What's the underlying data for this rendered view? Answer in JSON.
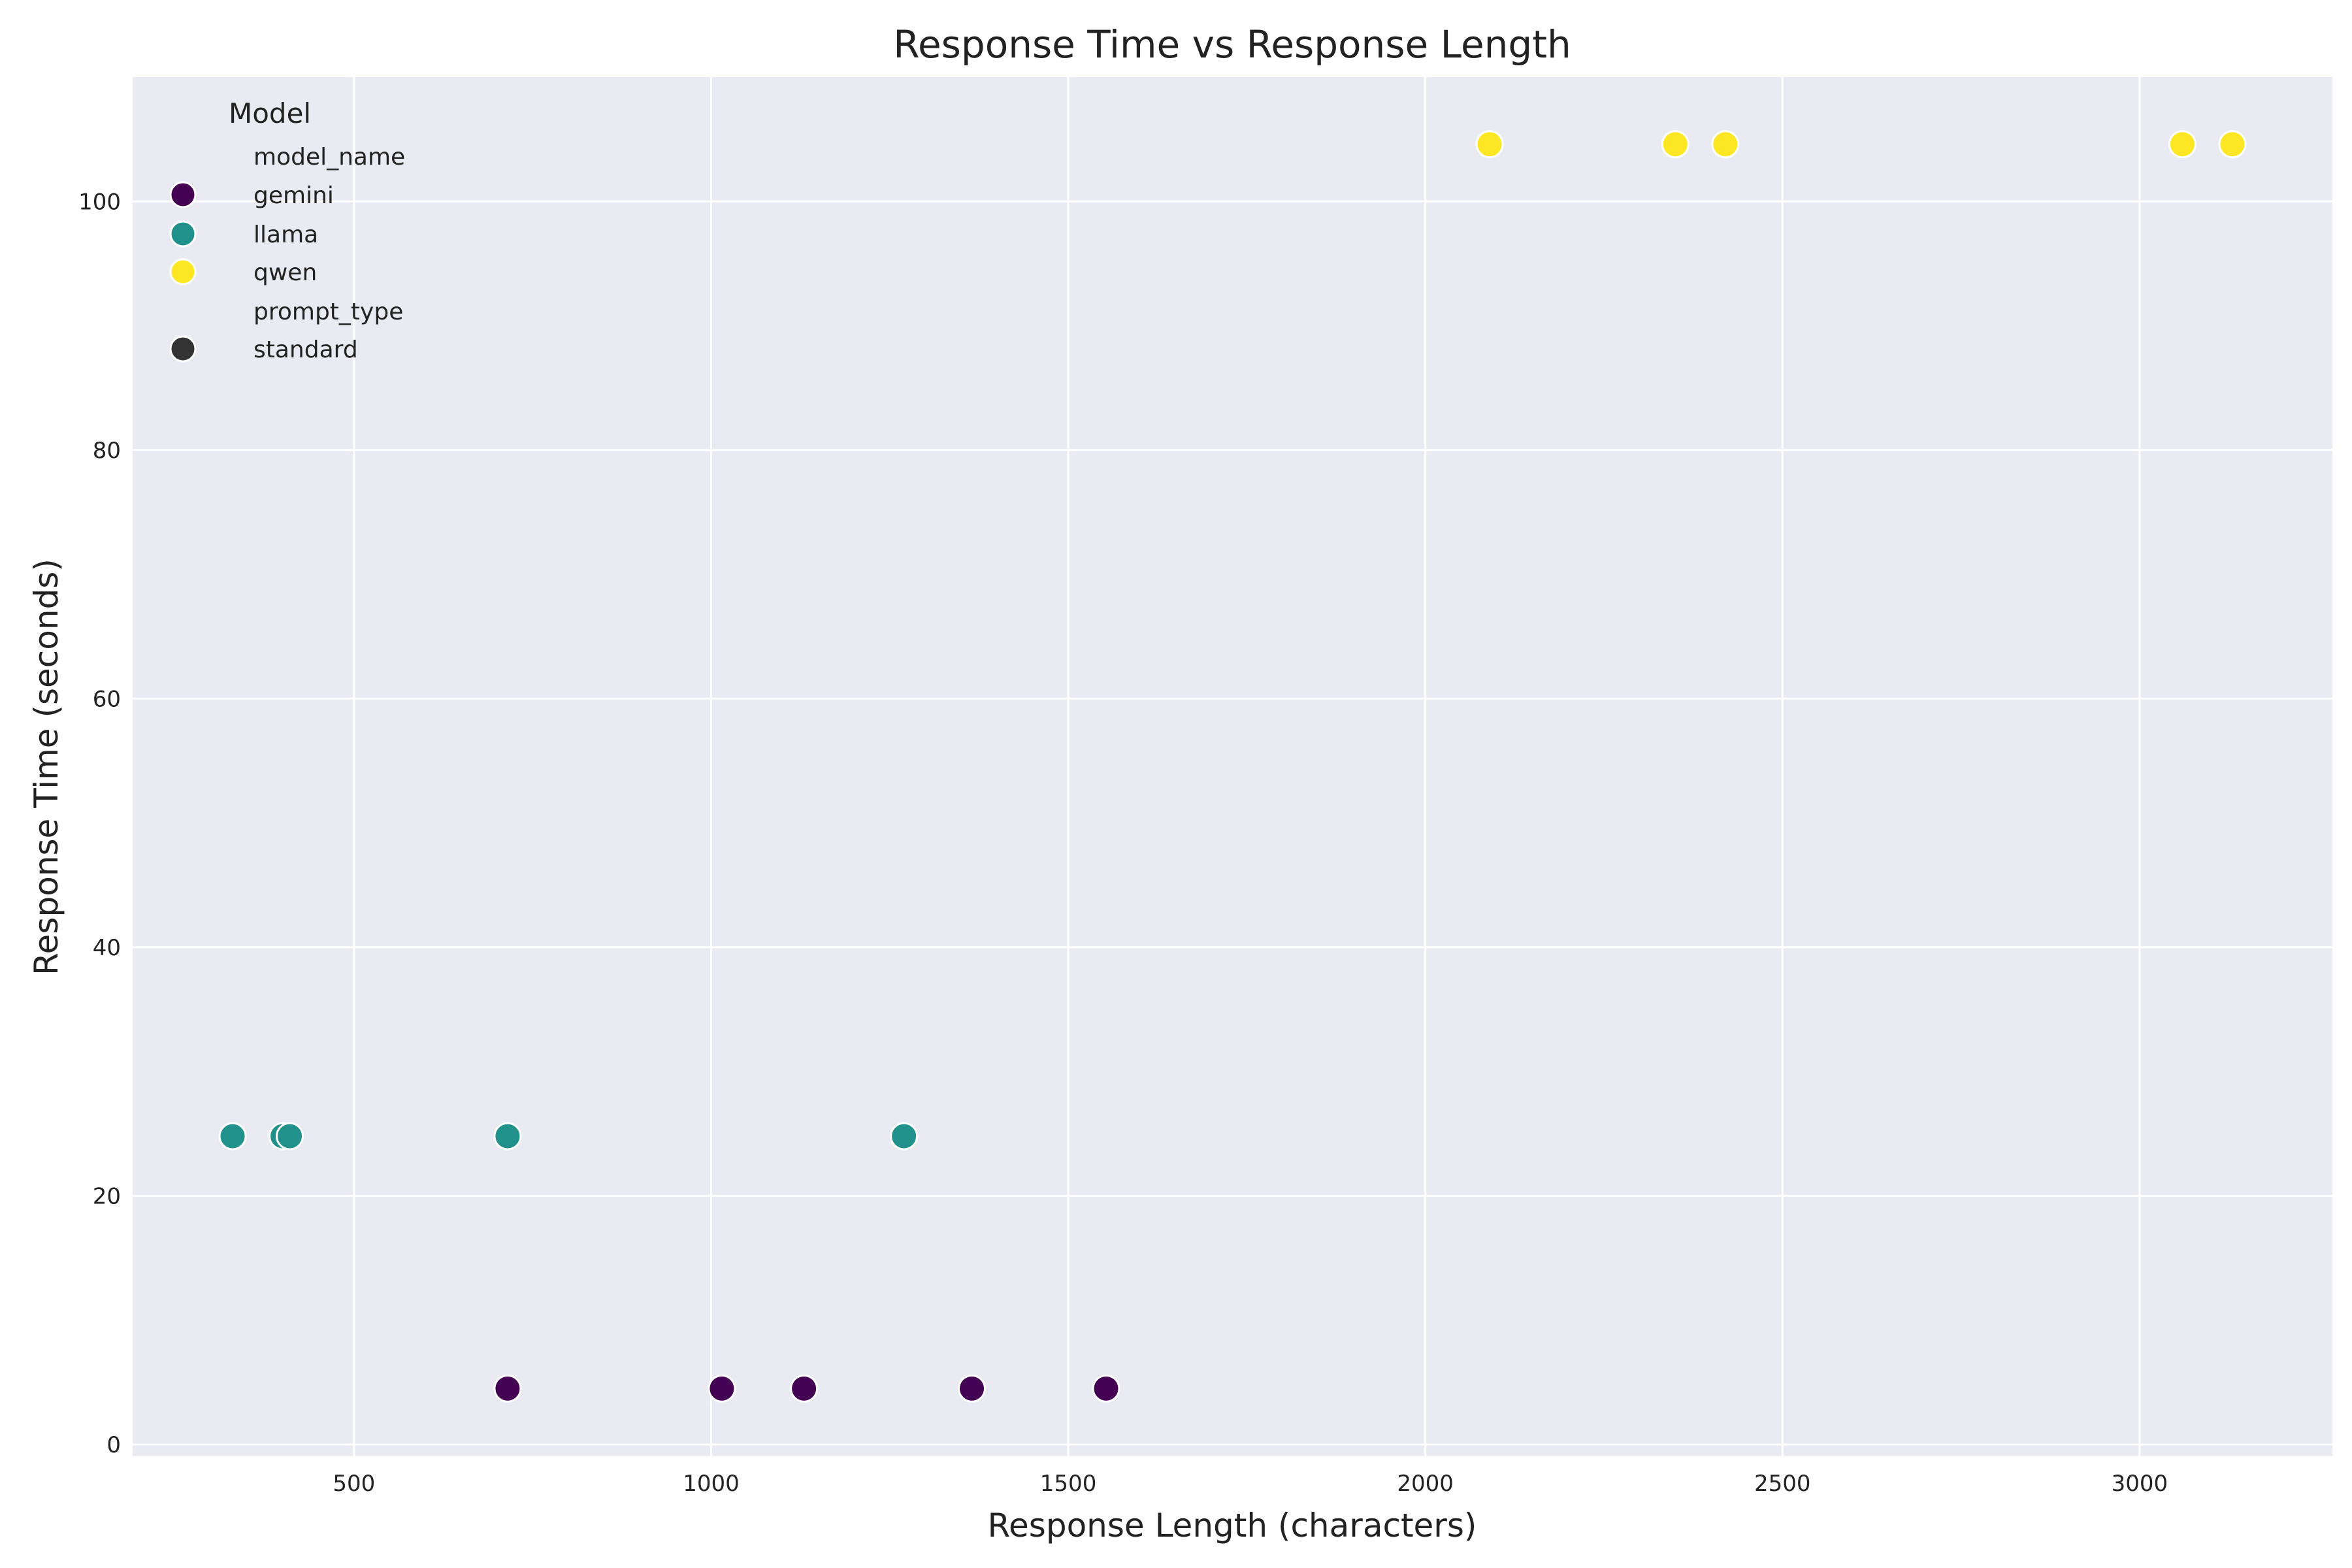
{
  "chart_data": {
    "type": "scatter",
    "title": "Response Time vs Response Length",
    "xlabel": "Response Length (characters)",
    "ylabel": "Response Time (seconds)",
    "xlim": [
      190,
      3270
    ],
    "ylim": [
      -1,
      110
    ],
    "xticks": [
      500,
      1000,
      1500,
      2000,
      2500,
      3000
    ],
    "yticks": [
      0,
      20,
      40,
      60,
      80,
      100
    ],
    "grid": true,
    "background": "#eaeaf2",
    "legend": {
      "placement": "top-left",
      "title": "Model",
      "hue_heading": "model_name",
      "style_heading": "prompt_type",
      "style_entries": [
        {
          "label": "standard",
          "color": "#333333"
        }
      ]
    },
    "series": [
      {
        "name": "gemini",
        "color": "#440154",
        "x": [
          715,
          1015,
          1130,
          1365,
          1553
        ],
        "y": [
          4.5,
          4.5,
          4.5,
          4.5,
          4.5
        ]
      },
      {
        "name": "llama",
        "color": "#21918c",
        "x": [
          330,
          400,
          410,
          715,
          1270
        ],
        "y": [
          24.8,
          24.8,
          24.8,
          24.8,
          24.8
        ]
      },
      {
        "name": "qwen",
        "color": "#fde725",
        "x": [
          2090,
          2350,
          2420,
          3060,
          3130
        ],
        "y": [
          104.6,
          104.6,
          104.6,
          104.6,
          104.6
        ]
      }
    ]
  }
}
